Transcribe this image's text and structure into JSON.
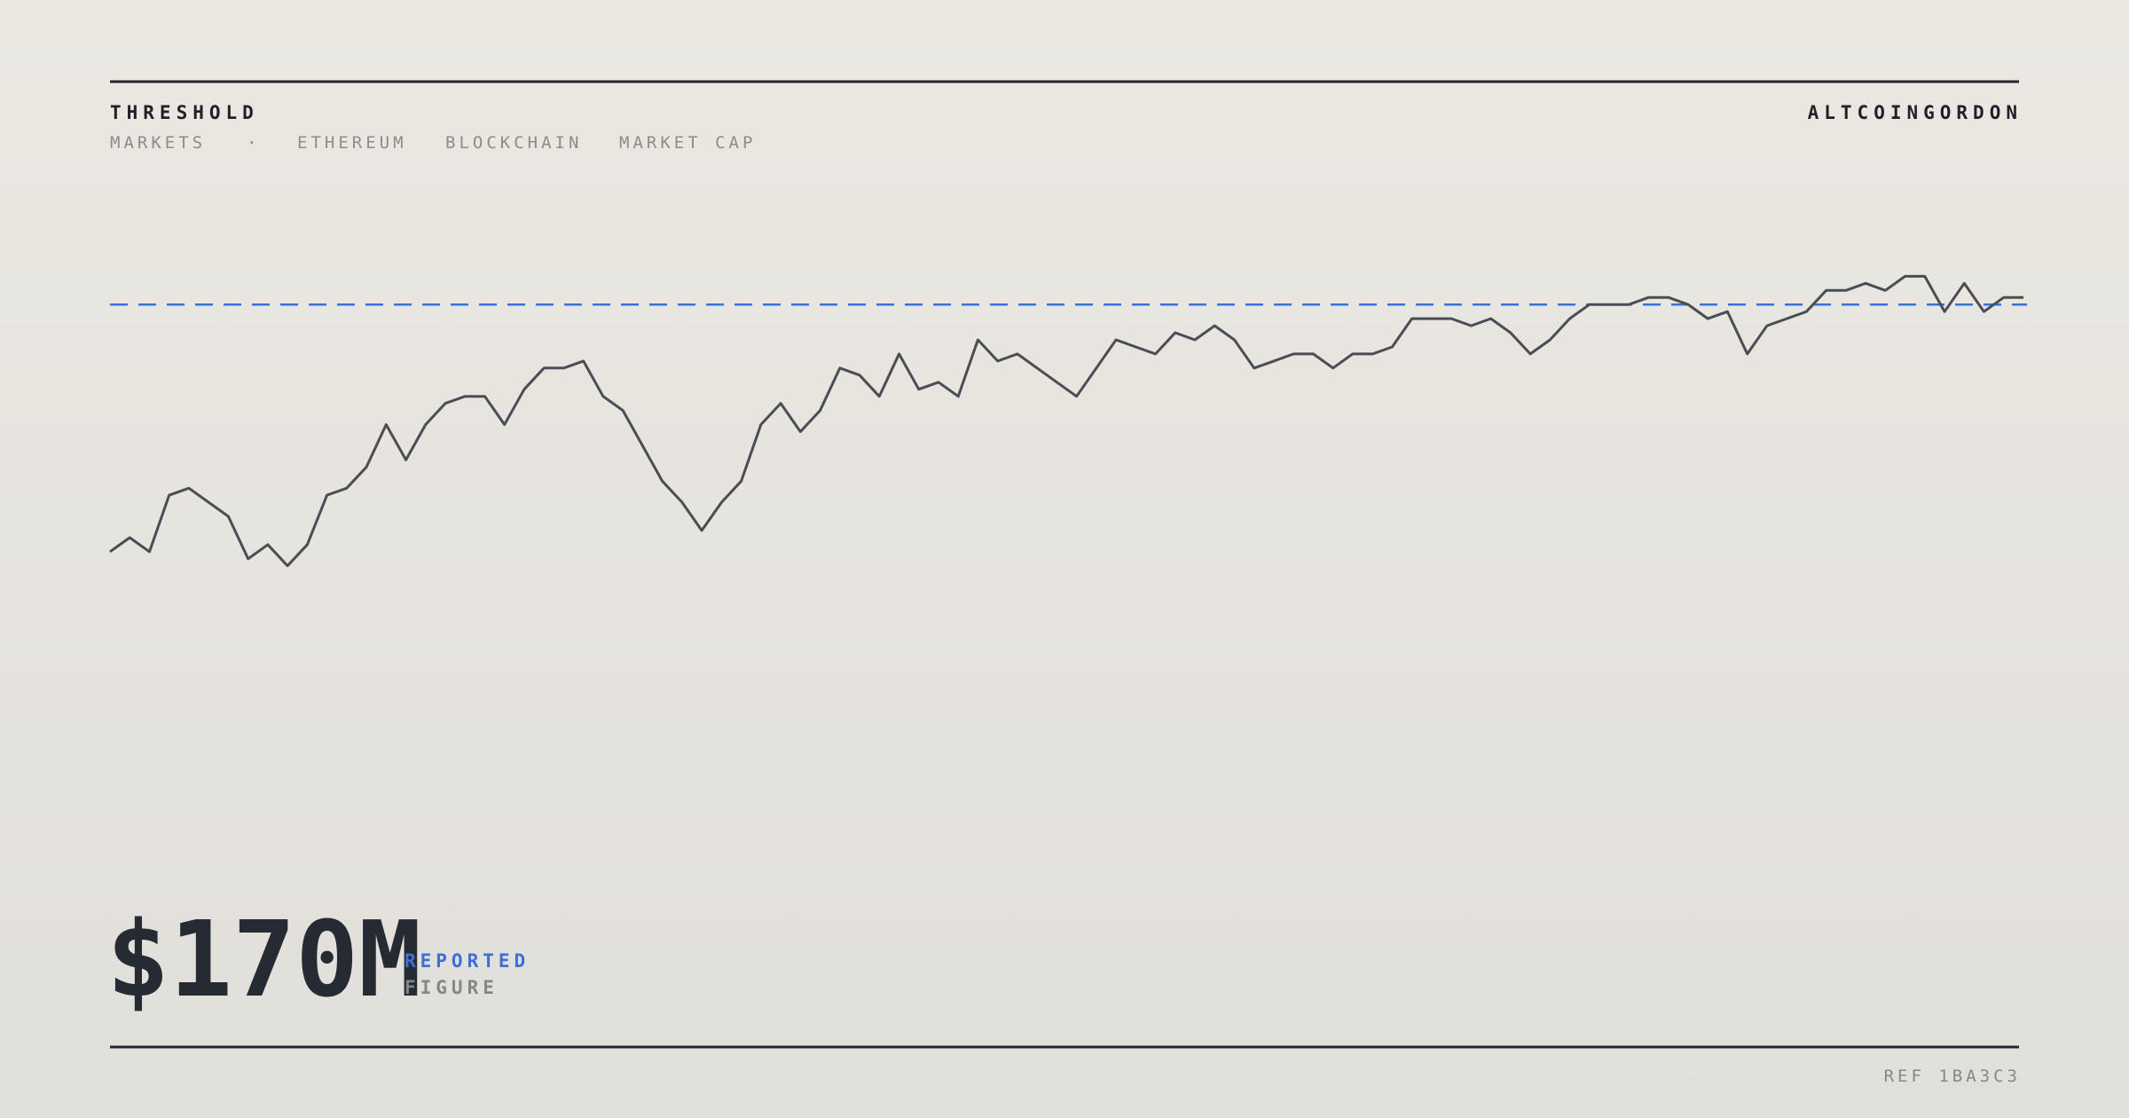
{
  "chart_data": {
    "type": "line",
    "title": "THRESHOLD",
    "tags": [
      "MARKETS",
      "·",
      "ETHEREUM",
      "BLOCKCHAIN",
      "MARKET CAP"
    ],
    "brand": "ALTCOINGORDON",
    "headline": "$170M",
    "headline_labels": [
      "REPORTED",
      "FIGURE"
    ],
    "ref": "REF 1BA3C3",
    "ylim": [
      0,
      100
    ],
    "threshold": {
      "value": 80,
      "color": "#3d6fd8"
    },
    "series": [
      {
        "color": "#4a4d55",
        "values": [
          45,
          47,
          45,
          53,
          54,
          52,
          50,
          44,
          46,
          43,
          46,
          53,
          54,
          57,
          63,
          58,
          63,
          66,
          67,
          67,
          63,
          68,
          71,
          71,
          72,
          67,
          65,
          60,
          55,
          52,
          48,
          52,
          55,
          63,
          66,
          62,
          65,
          71,
          70,
          67,
          73,
          68,
          69,
          67,
          75,
          72,
          73,
          71,
          69,
          67,
          71,
          75,
          74,
          73,
          76,
          75,
          77,
          75,
          71,
          72,
          73,
          73,
          71,
          73,
          73,
          74,
          78,
          78,
          78,
          77,
          78,
          76,
          73,
          75,
          78,
          80,
          80,
          80,
          81,
          81,
          80,
          78,
          79,
          73,
          77,
          78,
          79,
          82,
          82,
          83,
          82,
          84,
          84,
          79,
          83,
          79,
          81,
          81
        ]
      }
    ]
  }
}
